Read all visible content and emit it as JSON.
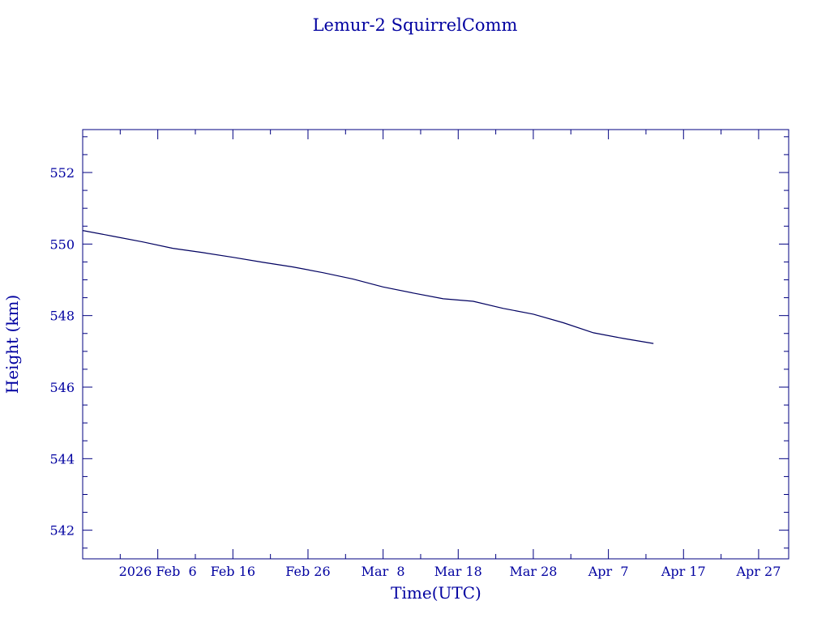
{
  "chart_data": {
    "type": "line",
    "title": "Lemur-2 SquirrelComm",
    "xlabel": "Time(UTC)",
    "ylabel": "Height (km)",
    "x_is_date": true,
    "xlim": [
      "2026-01-27",
      "2026-05-01"
    ],
    "ylim": [
      541.2,
      553.2
    ],
    "x_ticks": [
      {
        "date": "2026-02-06",
        "label": "2026 Feb  6"
      },
      {
        "date": "2026-02-16",
        "label": "Feb 16"
      },
      {
        "date": "2026-02-26",
        "label": "Feb 26"
      },
      {
        "date": "2026-03-08",
        "label": "Mar  8"
      },
      {
        "date": "2026-03-18",
        "label": "Mar 18"
      },
      {
        "date": "2026-03-28",
        "label": "Mar 28"
      },
      {
        "date": "2026-04-07",
        "label": "Apr  7"
      },
      {
        "date": "2026-04-17",
        "label": "Apr 17"
      },
      {
        "date": "2026-04-27",
        "label": "Apr 27"
      }
    ],
    "y_ticks": [
      542,
      544,
      546,
      548,
      550,
      552
    ],
    "grid": false,
    "series": [
      {
        "color": "#000060",
        "points": [
          [
            "2026-01-27",
            550.38
          ],
          [
            "2026-01-31",
            550.22
          ],
          [
            "2026-02-04",
            550.06
          ],
          [
            "2026-02-08",
            549.88
          ],
          [
            "2026-02-12",
            549.76
          ],
          [
            "2026-02-16",
            549.63
          ],
          [
            "2026-02-20",
            549.49
          ],
          [
            "2026-02-24",
            549.36
          ],
          [
            "2026-02-28",
            549.2
          ],
          [
            "2026-03-04",
            549.02
          ],
          [
            "2026-03-08",
            548.8
          ],
          [
            "2026-03-12",
            548.63
          ],
          [
            "2026-03-16",
            548.47
          ],
          [
            "2026-03-20",
            548.4
          ],
          [
            "2026-03-24",
            548.2
          ],
          [
            "2026-03-28",
            548.04
          ],
          [
            "2026-04-01",
            547.8
          ],
          [
            "2026-04-05",
            547.52
          ],
          [
            "2026-04-09",
            547.36
          ],
          [
            "2026-04-13",
            547.22
          ]
        ]
      }
    ]
  }
}
